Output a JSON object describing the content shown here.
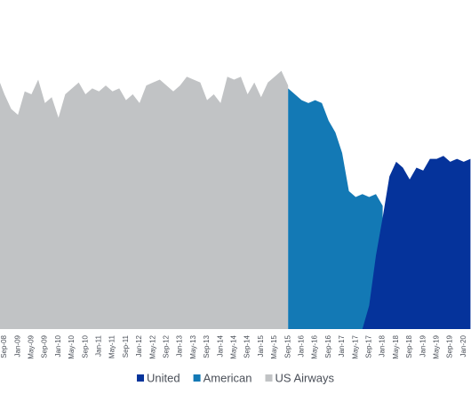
{
  "chart_data": {
    "type": "area",
    "categories": [
      null,
      "Sep-08",
      null,
      "Jan-09",
      null,
      "May-09",
      null,
      "Sep-09",
      null,
      "Jan-10",
      null,
      "May-10",
      null,
      "Sep-10",
      null,
      "Jan-11",
      null,
      "May-11",
      null,
      "Sep-11",
      null,
      "Jan-12",
      null,
      "May-12",
      null,
      "Sep-12",
      null,
      "Jan-13",
      null,
      "May-13",
      null,
      "Sep-13",
      null,
      "Jan-14",
      null,
      "May-14",
      null,
      "Sep-14",
      null,
      "Jan-15",
      null,
      "May-15",
      null,
      "Sep-15",
      null,
      "Jan-16",
      null,
      "May-16",
      null,
      "Sep-16",
      null,
      "Jan-17",
      null,
      "May-17",
      null,
      "Sep-17",
      null,
      "Jan-18",
      null,
      "May-18",
      null,
      "Sep-18",
      null,
      "Jan-19",
      null,
      "May-19",
      null,
      "Sep-19",
      null,
      "Jan-20",
      null
    ],
    "series": [
      {
        "name": "United",
        "color": "#05339b",
        "values": [
          null,
          null,
          null,
          null,
          null,
          null,
          null,
          null,
          null,
          null,
          null,
          null,
          null,
          null,
          null,
          null,
          null,
          null,
          null,
          null,
          null,
          null,
          null,
          null,
          null,
          null,
          null,
          null,
          null,
          null,
          null,
          null,
          null,
          null,
          null,
          null,
          null,
          null,
          null,
          null,
          null,
          null,
          null,
          null,
          null,
          null,
          null,
          null,
          null,
          null,
          null,
          null,
          null,
          null,
          0,
          8,
          25,
          38,
          52,
          57,
          55,
          51,
          55,
          54,
          58,
          58,
          59,
          57,
          58,
          57,
          58
        ]
      },
      {
        "name": "American",
        "color": "#1379b5",
        "values": [
          null,
          null,
          null,
          null,
          null,
          null,
          null,
          null,
          null,
          null,
          null,
          null,
          null,
          null,
          null,
          null,
          null,
          null,
          null,
          null,
          null,
          null,
          null,
          null,
          null,
          null,
          null,
          null,
          null,
          null,
          null,
          null,
          null,
          null,
          null,
          null,
          null,
          null,
          null,
          null,
          null,
          null,
          null,
          82,
          80,
          78,
          77,
          78,
          77,
          71,
          67,
          60,
          47,
          45,
          46,
          45,
          46,
          42,
          null,
          null,
          null,
          null,
          null,
          null,
          null,
          null,
          null,
          null,
          null,
          null,
          null
        ]
      },
      {
        "name": "US Airways",
        "color": "#c1c3c5",
        "values": [
          86,
          80,
          75,
          73,
          81,
          80,
          85,
          77,
          79,
          72,
          80,
          82,
          84,
          80,
          82,
          81,
          83,
          81,
          82,
          78,
          80,
          77,
          83,
          84,
          85,
          83,
          81,
          83,
          86,
          85,
          84,
          78,
          80,
          77,
          86,
          85,
          86,
          80,
          84,
          79,
          84,
          86,
          88,
          83,
          null,
          null,
          null,
          null,
          null,
          null,
          null,
          null,
          null,
          null,
          null,
          null,
          null,
          null,
          null,
          null,
          null,
          null,
          null,
          null,
          null,
          null,
          null,
          null,
          null,
          null,
          null
        ]
      }
    ],
    "ylim": [
      0,
      100
    ]
  }
}
